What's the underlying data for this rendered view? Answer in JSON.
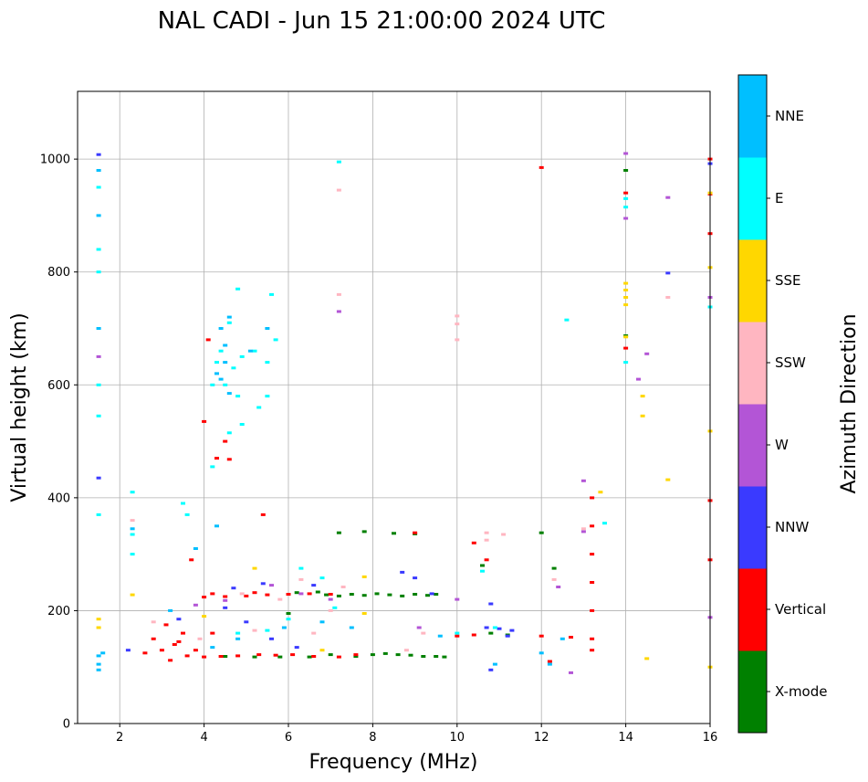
{
  "chart_data": {
    "type": "scatter",
    "title": "NAL CADI - Jun 15 21:00:00 2024 UTC",
    "xlabel": "Frequency (MHz)",
    "ylabel": "Virtual height (km)",
    "xlim": [
      1,
      16
    ],
    "ylim": [
      0,
      1120
    ],
    "xticks": [
      2,
      4,
      6,
      8,
      10,
      12,
      14,
      16
    ],
    "yticks": [
      0,
      200,
      400,
      600,
      800,
      1000
    ],
    "grid": true,
    "colorbar": {
      "title": "Azimuth Direction",
      "categories": [
        {
          "name": "X-mode",
          "color": "#008000"
        },
        {
          "name": "Vertical",
          "color": "#ff0000"
        },
        {
          "name": "NNW",
          "color": "#3a3aff"
        },
        {
          "name": "W",
          "color": "#b355d6"
        },
        {
          "name": "SSW",
          "color": "#ffb6c1"
        },
        {
          "name": "SSE",
          "color": "#ffd700"
        },
        {
          "name": "E",
          "color": "#00ffff"
        },
        {
          "name": "NNE",
          "color": "#00bfff"
        }
      ]
    },
    "series": [
      {
        "name": "X-mode",
        "points": [
          [
            6.9,
            228
          ],
          [
            7.2,
            226
          ],
          [
            7.5,
            229
          ],
          [
            7.8,
            227
          ],
          [
            8.1,
            230
          ],
          [
            8.4,
            228
          ],
          [
            8.7,
            226
          ],
          [
            9.0,
            229
          ],
          [
            9.3,
            227
          ],
          [
            9.5,
            229
          ],
          [
            6.2,
            232
          ],
          [
            6.7,
            233
          ],
          [
            8.5,
            337
          ],
          [
            9.0,
            336
          ],
          [
            7.8,
            340
          ],
          [
            8.6,
            122
          ],
          [
            8.9,
            121
          ],
          [
            9.2,
            119
          ],
          [
            9.5,
            119
          ],
          [
            9.7,
            118
          ],
          [
            8.3,
            124
          ],
          [
            8.0,
            122
          ],
          [
            7.6,
            119
          ],
          [
            7.0,
            122
          ],
          [
            6.5,
            118
          ],
          [
            5.8,
            118
          ],
          [
            5.2,
            118
          ],
          [
            4.5,
            119
          ],
          [
            10.6,
            280
          ],
          [
            14.0,
            980
          ],
          [
            14.0,
            687
          ],
          [
            12.3,
            275
          ],
          [
            12.0,
            338
          ],
          [
            7.2,
            338
          ],
          [
            10.8,
            160
          ],
          [
            11.2,
            157
          ],
          [
            6.0,
            195
          ]
        ]
      },
      {
        "name": "Vertical",
        "points": [
          [
            4.0,
            224
          ],
          [
            4.5,
            225
          ],
          [
            5.0,
            226
          ],
          [
            5.5,
            228
          ],
          [
            6.0,
            229
          ],
          [
            6.5,
            230
          ],
          [
            7.0,
            229
          ],
          [
            4.2,
            230
          ],
          [
            5.2,
            232
          ],
          [
            4.3,
            470
          ],
          [
            4.6,
            468
          ],
          [
            4.5,
            500
          ],
          [
            4.1,
            680
          ],
          [
            4.0,
            535
          ],
          [
            3.7,
            290
          ],
          [
            5.4,
            370
          ],
          [
            4.0,
            118
          ],
          [
            4.4,
            119
          ],
          [
            4.8,
            120
          ],
          [
            5.3,
            122
          ],
          [
            5.7,
            121
          ],
          [
            6.1,
            122
          ],
          [
            6.6,
            119
          ],
          [
            7.2,
            118
          ],
          [
            7.6,
            122
          ],
          [
            3.0,
            130
          ],
          [
            3.3,
            140
          ],
          [
            3.5,
            160
          ],
          [
            3.1,
            175
          ],
          [
            3.6,
            120
          ],
          [
            2.6,
            125
          ],
          [
            2.8,
            150
          ],
          [
            3.2,
            112
          ],
          [
            3.4,
            145
          ],
          [
            3.8,
            130
          ],
          [
            4.2,
            160
          ],
          [
            9.0,
            338
          ],
          [
            10.7,
            290
          ],
          [
            10.4,
            320
          ],
          [
            10.0,
            155
          ],
          [
            10.4,
            157
          ],
          [
            12.0,
            985
          ],
          [
            12.0,
            155
          ],
          [
            12.2,
            110
          ],
          [
            12.7,
            153
          ],
          [
            14.0,
            940
          ],
          [
            14.0,
            665
          ],
          [
            16.0,
            1000
          ],
          [
            16.0,
            938
          ],
          [
            16.0,
            868
          ],
          [
            16.0,
            395
          ],
          [
            16.0,
            290
          ],
          [
            13.2,
            400
          ],
          [
            13.2,
            350
          ],
          [
            13.2,
            300
          ],
          [
            13.2,
            250
          ],
          [
            13.2,
            200
          ],
          [
            13.2,
            150
          ],
          [
            13.2,
            130
          ]
        ]
      },
      {
        "name": "NNW",
        "points": [
          [
            4.7,
            240
          ],
          [
            5.4,
            248
          ],
          [
            6.6,
            245
          ],
          [
            8.7,
            268
          ],
          [
            9.0,
            258
          ],
          [
            9.4,
            230
          ],
          [
            10.7,
            170
          ],
          [
            11.0,
            168
          ],
          [
            11.3,
            165
          ],
          [
            10.8,
            212
          ],
          [
            10.8,
            95
          ],
          [
            11.2,
            155
          ],
          [
            15.0,
            798
          ],
          [
            16.0,
            992
          ],
          [
            4.5,
            205
          ],
          [
            5.0,
            180
          ],
          [
            5.6,
            150
          ],
          [
            6.2,
            135
          ],
          [
            3.4,
            185
          ],
          [
            2.2,
            130
          ],
          [
            1.5,
            1008
          ],
          [
            1.5,
            435
          ]
        ]
      },
      {
        "name": "W",
        "points": [
          [
            4.5,
            218
          ],
          [
            5.6,
            245
          ],
          [
            6.3,
            230
          ],
          [
            7.0,
            220
          ],
          [
            12.4,
            242
          ],
          [
            12.7,
            90
          ],
          [
            13.0,
            430
          ],
          [
            13.0,
            340
          ],
          [
            14.0,
            1010
          ],
          [
            14.0,
            895
          ],
          [
            14.3,
            610
          ],
          [
            14.5,
            655
          ],
          [
            15.0,
            932
          ],
          [
            16.0,
            755
          ],
          [
            16.0,
            188
          ],
          [
            9.1,
            170
          ],
          [
            3.8,
            210
          ],
          [
            7.2,
            730
          ],
          [
            1.5,
            650
          ],
          [
            10.0,
            220
          ]
        ]
      },
      {
        "name": "SSW",
        "points": [
          [
            2.3,
            360
          ],
          [
            4.9,
            230
          ],
          [
            5.8,
            220
          ],
          [
            6.3,
            255
          ],
          [
            7.0,
            200
          ],
          [
            7.3,
            242
          ],
          [
            10.0,
            722
          ],
          [
            10.0,
            680
          ],
          [
            10.0,
            708
          ],
          [
            10.7,
            338
          ],
          [
            10.7,
            325
          ],
          [
            11.1,
            335
          ],
          [
            12.3,
            255
          ],
          [
            13.0,
            345
          ],
          [
            15.0,
            755
          ],
          [
            7.2,
            945
          ],
          [
            7.2,
            760
          ],
          [
            2.8,
            180
          ],
          [
            3.9,
            150
          ],
          [
            5.2,
            165
          ],
          [
            6.6,
            160
          ],
          [
            8.8,
            130
          ],
          [
            9.2,
            160
          ]
        ]
      },
      {
        "name": "SSE",
        "points": [
          [
            14.0,
            780
          ],
          [
            14.0,
            768
          ],
          [
            14.0,
            755
          ],
          [
            14.0,
            742
          ],
          [
            14.0,
            685
          ],
          [
            14.4,
            580
          ],
          [
            14.4,
            545
          ],
          [
            14.5,
            115
          ],
          [
            15.0,
            432
          ],
          [
            16.0,
            940
          ],
          [
            16.0,
            808
          ],
          [
            16.0,
            518
          ],
          [
            16.0,
            100
          ],
          [
            13.4,
            410
          ],
          [
            2.3,
            228
          ],
          [
            1.5,
            185
          ],
          [
            1.5,
            170
          ],
          [
            7.8,
            260
          ],
          [
            7.8,
            195
          ],
          [
            5.2,
            275
          ],
          [
            4.0,
            190
          ],
          [
            6.8,
            130
          ]
        ]
      },
      {
        "name": "E",
        "points": [
          [
            2.3,
            300
          ],
          [
            2.3,
            335
          ],
          [
            2.3,
            410
          ],
          [
            4.3,
            640
          ],
          [
            4.5,
            600
          ],
          [
            4.7,
            630
          ],
          [
            4.8,
            770
          ],
          [
            5.5,
            640
          ],
          [
            5.7,
            680
          ],
          [
            4.4,
            660
          ],
          [
            4.6,
            710
          ],
          [
            4.9,
            650
          ],
          [
            5.2,
            660
          ],
          [
            5.3,
            560
          ],
          [
            5.5,
            580
          ],
          [
            3.5,
            390
          ],
          [
            3.6,
            370
          ],
          [
            4.2,
            455
          ],
          [
            12.6,
            715
          ],
          [
            14.0,
            930
          ],
          [
            14.0,
            915
          ],
          [
            14.0,
            640
          ],
          [
            16.0,
            738
          ],
          [
            10.6,
            270
          ],
          [
            10.9,
            170
          ],
          [
            1.5,
            370
          ],
          [
            1.5,
            600
          ],
          [
            1.5,
            545
          ],
          [
            1.5,
            800
          ],
          [
            1.5,
            840
          ],
          [
            1.5,
            950
          ],
          [
            6.3,
            275
          ],
          [
            6.8,
            258
          ],
          [
            7.1,
            205
          ],
          [
            6.0,
            185
          ],
          [
            5.5,
            165
          ],
          [
            4.8,
            160
          ],
          [
            10.0,
            160
          ],
          [
            13.5,
            355
          ],
          [
            7.2,
            995
          ],
          [
            5.6,
            760
          ],
          [
            4.9,
            530
          ],
          [
            4.6,
            515
          ],
          [
            4.2,
            600
          ],
          [
            4.8,
            580
          ]
        ]
      },
      {
        "name": "NNE",
        "points": [
          [
            4.3,
            620
          ],
          [
            4.5,
            640
          ],
          [
            4.5,
            670
          ],
          [
            4.4,
            700
          ],
          [
            4.6,
            720
          ],
          [
            4.6,
            585
          ],
          [
            4.4,
            610
          ],
          [
            5.5,
            700
          ],
          [
            5.1,
            660
          ],
          [
            3.8,
            310
          ],
          [
            4.3,
            350
          ],
          [
            2.3,
            345
          ],
          [
            1.5,
            120
          ],
          [
            1.5,
            105
          ],
          [
            1.5,
            95
          ],
          [
            1.6,
            125
          ],
          [
            3.2,
            200
          ],
          [
            10.9,
            105
          ],
          [
            12.5,
            150
          ],
          [
            12.0,
            125
          ],
          [
            12.2,
            105
          ],
          [
            9.6,
            155
          ],
          [
            7.5,
            170
          ],
          [
            6.8,
            180
          ],
          [
            5.9,
            170
          ],
          [
            4.8,
            150
          ],
          [
            4.2,
            135
          ],
          [
            1.5,
            900
          ],
          [
            1.5,
            980
          ],
          [
            1.5,
            700
          ]
        ]
      }
    ]
  }
}
